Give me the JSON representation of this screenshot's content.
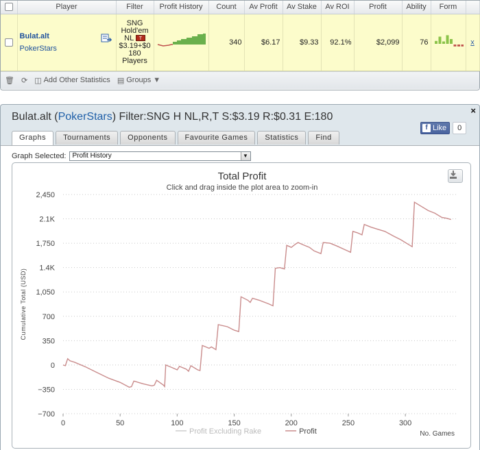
{
  "stats_table": {
    "headers": {
      "player": "Player",
      "filter": "Filter",
      "profit_history": "Profit History",
      "count": "Count",
      "av_profit": "Av Profit",
      "av_stake": "Av Stake",
      "av_roi": "Av ROI",
      "profit": "Profit",
      "ability": "Ability",
      "form": "Form"
    },
    "row": {
      "player_name": "Bulat.alt",
      "player_site": "PokerStars",
      "filter_lines": [
        "SNG",
        "Hold'em",
        "NL",
        "$3.19+$0",
        "180",
        "Players"
      ],
      "filter_flag": "T",
      "count": "340",
      "av_profit": "$6.17",
      "av_stake": "$9.33",
      "av_roi": "92.1%",
      "profit": "$2,099",
      "ability": "76",
      "action_link": "x",
      "form_bars": [
        {
          "v": 0.3,
          "color": "#8bc34a"
        },
        {
          "v": 0.75,
          "color": "#8bc34a"
        },
        {
          "v": 0.25,
          "color": "#8bc34a"
        },
        {
          "v": 0.9,
          "color": "#8bc34a"
        },
        {
          "v": 0.5,
          "color": "#8bc34a"
        },
        {
          "v": -0.2,
          "color": "#c0504d"
        },
        {
          "v": -0.2,
          "color": "#c0504d"
        },
        {
          "v": -0.2,
          "color": "#c0504d"
        }
      ]
    },
    "toolbar": {
      "add_stats": "Add Other Statistics",
      "groups": "Groups"
    }
  },
  "player_window": {
    "title_prefix": "Bulat.alt (",
    "title_site": "PokerStars",
    "title_suffix": ") Filter:SNG H NL,R,T S:$3.19 R:$0.31 E:180",
    "close": "×",
    "fb_like": "Like",
    "fb_count": "0",
    "tabs": [
      {
        "label": "Graphs",
        "active": true
      },
      {
        "label": "Tournaments",
        "active": false
      },
      {
        "label": "Opponents",
        "active": false
      },
      {
        "label": "Favourite Games",
        "active": false
      },
      {
        "label": "Statistics",
        "active": false
      },
      {
        "label": "Find",
        "active": false
      }
    ],
    "graph_selected_label": "Graph Selected:",
    "graph_selected_value": "Profit History"
  },
  "accent_colors": {
    "profit_line": "#c98b8b",
    "rake_line": "#cccccc",
    "link_blue": "#1c4f9c",
    "row_highlight": "#fcfccb"
  },
  "chart_data": {
    "type": "line",
    "title": "Total Profit",
    "subtitle": "Click and drag inside the plot area to zoom-in",
    "xlabel": "No. Games",
    "ylabel": "Cumulative Total (USD)",
    "xlim": [
      0,
      345
    ],
    "ylim": [
      -700,
      2450
    ],
    "x_ticks": [
      0,
      100,
      200,
      300
    ],
    "x_tick_labels": [
      "0",
      "100",
      "200",
      "300"
    ],
    "x_minor_ticks": [
      0,
      50,
      100,
      150,
      200,
      250,
      300
    ],
    "x_minor_labels": [
      "0",
      "50",
      "100",
      "150",
      "200",
      "250",
      "300"
    ],
    "y_ticks": [
      -700,
      -350,
      0,
      350,
      700,
      1050,
      1400,
      1750,
      2100,
      2450
    ],
    "y_tick_labels": [
      "−700",
      "−350",
      "0",
      "350",
      "700",
      "1,050",
      "1.4K",
      "1,750",
      "2.1K",
      "2,450"
    ],
    "legend_position": "bottom-center",
    "series": [
      {
        "name": "Profit Excluding Rake",
        "color": "#cccccc",
        "points": []
      },
      {
        "name": "Profit",
        "color": "#c98b8b",
        "points": [
          [
            0,
            0
          ],
          [
            2,
            -10
          ],
          [
            4,
            90
          ],
          [
            6,
            60
          ],
          [
            10,
            40
          ],
          [
            20,
            -30
          ],
          [
            30,
            -110
          ],
          [
            40,
            -190
          ],
          [
            50,
            -250
          ],
          [
            58,
            -320
          ],
          [
            60,
            -310
          ],
          [
            62,
            -230
          ],
          [
            70,
            -270
          ],
          [
            78,
            -300
          ],
          [
            80,
            -290
          ],
          [
            82,
            -220
          ],
          [
            88,
            -290
          ],
          [
            89,
            -310
          ],
          [
            90,
            0
          ],
          [
            96,
            -40
          ],
          [
            100,
            -70
          ],
          [
            102,
            -20
          ],
          [
            108,
            -60
          ],
          [
            110,
            -90
          ],
          [
            112,
            -10
          ],
          [
            118,
            -70
          ],
          [
            120,
            -80
          ],
          [
            122,
            280
          ],
          [
            128,
            240
          ],
          [
            130,
            260
          ],
          [
            134,
            220
          ],
          [
            136,
            580
          ],
          [
            144,
            550
          ],
          [
            150,
            500
          ],
          [
            154,
            480
          ],
          [
            156,
            980
          ],
          [
            162,
            930
          ],
          [
            164,
            900
          ],
          [
            166,
            960
          ],
          [
            172,
            930
          ],
          [
            180,
            880
          ],
          [
            184,
            850
          ],
          [
            186,
            1390
          ],
          [
            190,
            1400
          ],
          [
            194,
            1380
          ],
          [
            196,
            1720
          ],
          [
            200,
            1690
          ],
          [
            204,
            1740
          ],
          [
            206,
            1760
          ],
          [
            210,
            1730
          ],
          [
            216,
            1690
          ],
          [
            220,
            1640
          ],
          [
            226,
            1600
          ],
          [
            228,
            1760
          ],
          [
            234,
            1750
          ],
          [
            240,
            1710
          ],
          [
            248,
            1650
          ],
          [
            252,
            1620
          ],
          [
            254,
            1920
          ],
          [
            258,
            1900
          ],
          [
            262,
            1870
          ],
          [
            264,
            2020
          ],
          [
            270,
            1980
          ],
          [
            276,
            1950
          ],
          [
            282,
            1920
          ],
          [
            290,
            1850
          ],
          [
            296,
            1800
          ],
          [
            304,
            1720
          ],
          [
            306,
            1700
          ],
          [
            308,
            2340
          ],
          [
            314,
            2280
          ],
          [
            320,
            2220
          ],
          [
            326,
            2180
          ],
          [
            332,
            2120
          ],
          [
            336,
            2110
          ],
          [
            340,
            2090
          ]
        ]
      }
    ],
    "grid": true
  }
}
